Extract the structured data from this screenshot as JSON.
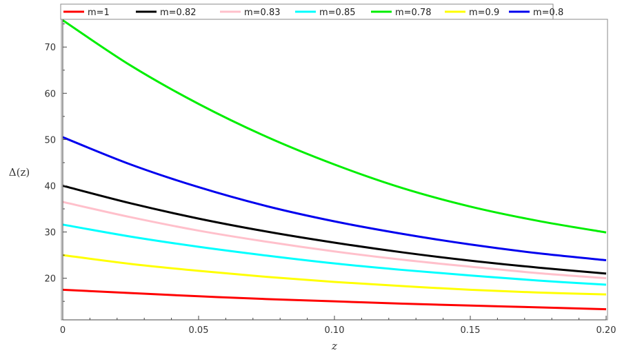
{
  "chart_data": {
    "type": "line",
    "xlabel": "z",
    "ylabel": "Δ(z)",
    "xlim": [
      0,
      0.2
    ],
    "ylim": [
      11,
      76
    ],
    "x_ticks": [
      0,
      0.05,
      0.1,
      0.15,
      0.2
    ],
    "x_tick_labels": [
      "0",
      "0.05",
      "0.10",
      "0.15",
      "0.20"
    ],
    "y_ticks": [
      20,
      30,
      40,
      50,
      60,
      70
    ],
    "y_tick_labels": [
      "20",
      "30",
      "40",
      "50",
      "60",
      "70"
    ],
    "grid": false,
    "legend_position": "top",
    "x": [
      0,
      0.025,
      0.05,
      0.075,
      0.1,
      0.125,
      0.15,
      0.175,
      0.2
    ],
    "series": [
      {
        "name": "m=1",
        "color": "#ff0000",
        "values": [
          17.5,
          16.8,
          16.1,
          15.5,
          15.0,
          14.5,
          14.1,
          13.7,
          13.3
        ]
      },
      {
        "name": "m=0.82",
        "color": "#000000",
        "values": [
          40.0,
          36.2,
          32.9,
          30.1,
          27.7,
          25.6,
          23.8,
          22.3,
          21.0
        ]
      },
      {
        "name": "m=0.83",
        "color": "#ffc0cb",
        "values": [
          36.5,
          33.2,
          30.3,
          27.9,
          25.8,
          24.0,
          22.5,
          21.1,
          20.0
        ]
      },
      {
        "name": "m=0.85",
        "color": "#00ffff",
        "values": [
          31.6,
          29.0,
          26.8,
          24.9,
          23.2,
          21.8,
          20.6,
          19.5,
          18.6
        ]
      },
      {
        "name": "m=0.78",
        "color": "#00ee00",
        "values": [
          75.8,
          66.0,
          57.7,
          50.6,
          44.6,
          39.5,
          35.5,
          32.4,
          29.9
        ]
      },
      {
        "name": "m=0.9",
        "color": "#ffff00",
        "values": [
          25.0,
          23.1,
          21.6,
          20.3,
          19.2,
          18.3,
          17.5,
          16.9,
          16.5
        ]
      },
      {
        "name": "m=0.8",
        "color": "#0000ee",
        "values": [
          50.5,
          44.6,
          39.7,
          35.6,
          32.3,
          29.6,
          27.3,
          25.4,
          23.9
        ]
      }
    ]
  }
}
